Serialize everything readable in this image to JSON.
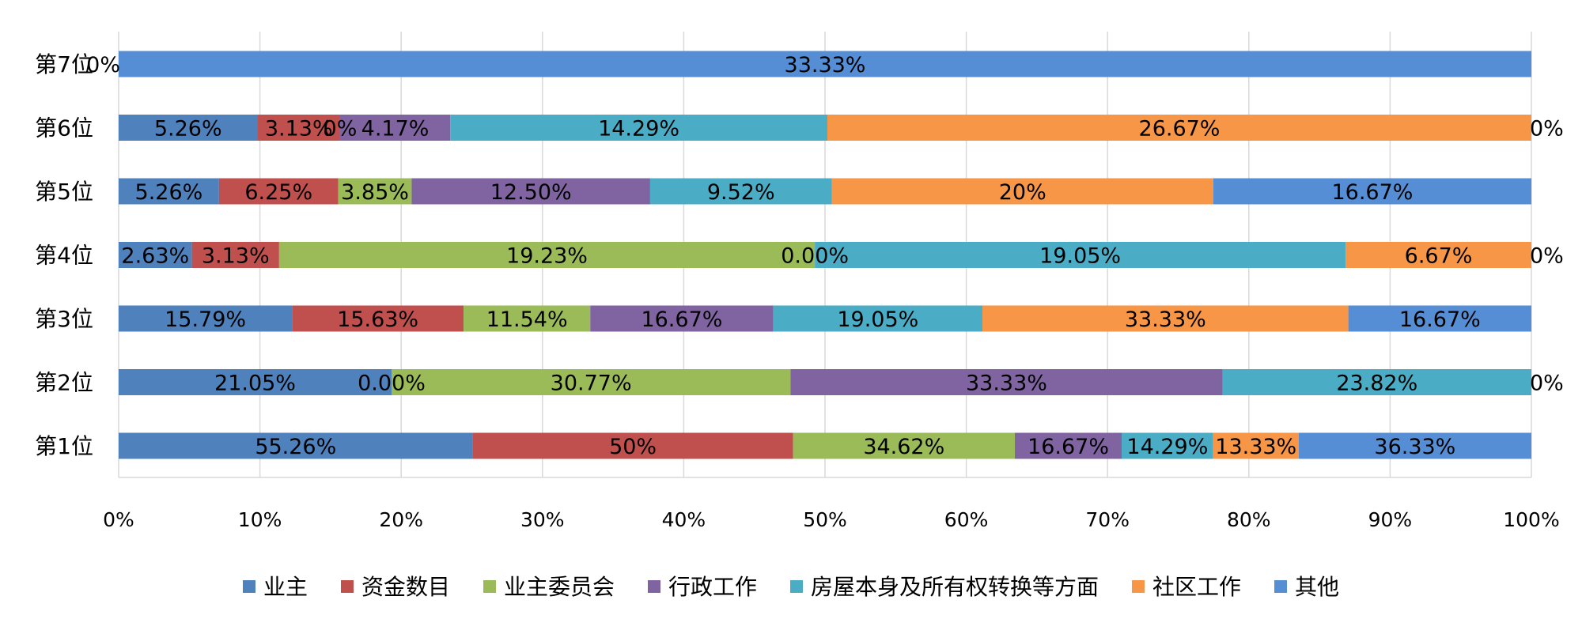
{
  "chart_data": {
    "type": "bar",
    "orientation": "horizontal",
    "stacked": "percent",
    "categories": [
      "第1位",
      "第2位",
      "第3位",
      "第4位",
      "第5位",
      "第6位",
      "第7位"
    ],
    "series": [
      {
        "name": "业主",
        "color": "#4f81bd",
        "values": [
          55.26,
          21.05,
          15.79,
          2.63,
          5.26,
          5.26,
          0
        ],
        "labels": [
          "55.26%",
          "21.05%",
          "15.79%",
          "2.63%",
          "5.26%",
          "5.26%",
          "0%"
        ]
      },
      {
        "name": "资金数目",
        "color": "#c0504d",
        "values": [
          50,
          0,
          15.63,
          3.13,
          6.25,
          3.13,
          0
        ],
        "labels": [
          "50%",
          "0.00%",
          "15.63%",
          "3.13%",
          "6.25%",
          "3.13%",
          ""
        ]
      },
      {
        "name": "业主委员会",
        "color": "#9bbb59",
        "values": [
          34.62,
          30.77,
          11.54,
          19.23,
          3.85,
          0,
          0
        ],
        "labels": [
          "34.62%",
          "30.77%",
          "11.54%",
          "19.23%",
          "3.85%",
          "0%",
          ""
        ]
      },
      {
        "name": "行政工作",
        "color": "#8064a2",
        "values": [
          16.67,
          33.33,
          16.67,
          0,
          12.5,
          4.17,
          0
        ],
        "labels": [
          "16.67%",
          "33.33%",
          "16.67%",
          "0.00%",
          "12.50%",
          "4.17%",
          ""
        ]
      },
      {
        "name": "房屋本身及所有权转换等方面",
        "color": "#4bacc6",
        "values": [
          14.29,
          23.82,
          19.05,
          19.05,
          9.52,
          14.29,
          0
        ],
        "labels": [
          "14.29%",
          "23.82%",
          "19.05%",
          "19.05%",
          "9.52%",
          "14.29%",
          ""
        ]
      },
      {
        "name": "社区工作",
        "color": "#f79646",
        "values": [
          13.33,
          0,
          33.33,
          6.67,
          20,
          26.67,
          0
        ],
        "labels": [
          "13.33%",
          "0%",
          "33.33%",
          "6.67%",
          "20%",
          "26.67%",
          ""
        ]
      },
      {
        "name": "其他",
        "color": "#558ed5",
        "values": [
          36.33,
          0,
          16.67,
          0,
          16.67,
          0,
          33.33
        ],
        "labels": [
          "36.33%",
          "",
          "16.67%",
          "0%",
          "16.67%",
          "0%",
          "33.33%"
        ]
      }
    ],
    "x_ticks": [
      "0%",
      "10%",
      "20%",
      "30%",
      "40%",
      "50%",
      "60%",
      "70%",
      "80%",
      "90%",
      "100%"
    ],
    "xlim": [
      0,
      100
    ],
    "grid": true,
    "legend": "bottom",
    "title": "",
    "xlabel": "",
    "ylabel": ""
  }
}
